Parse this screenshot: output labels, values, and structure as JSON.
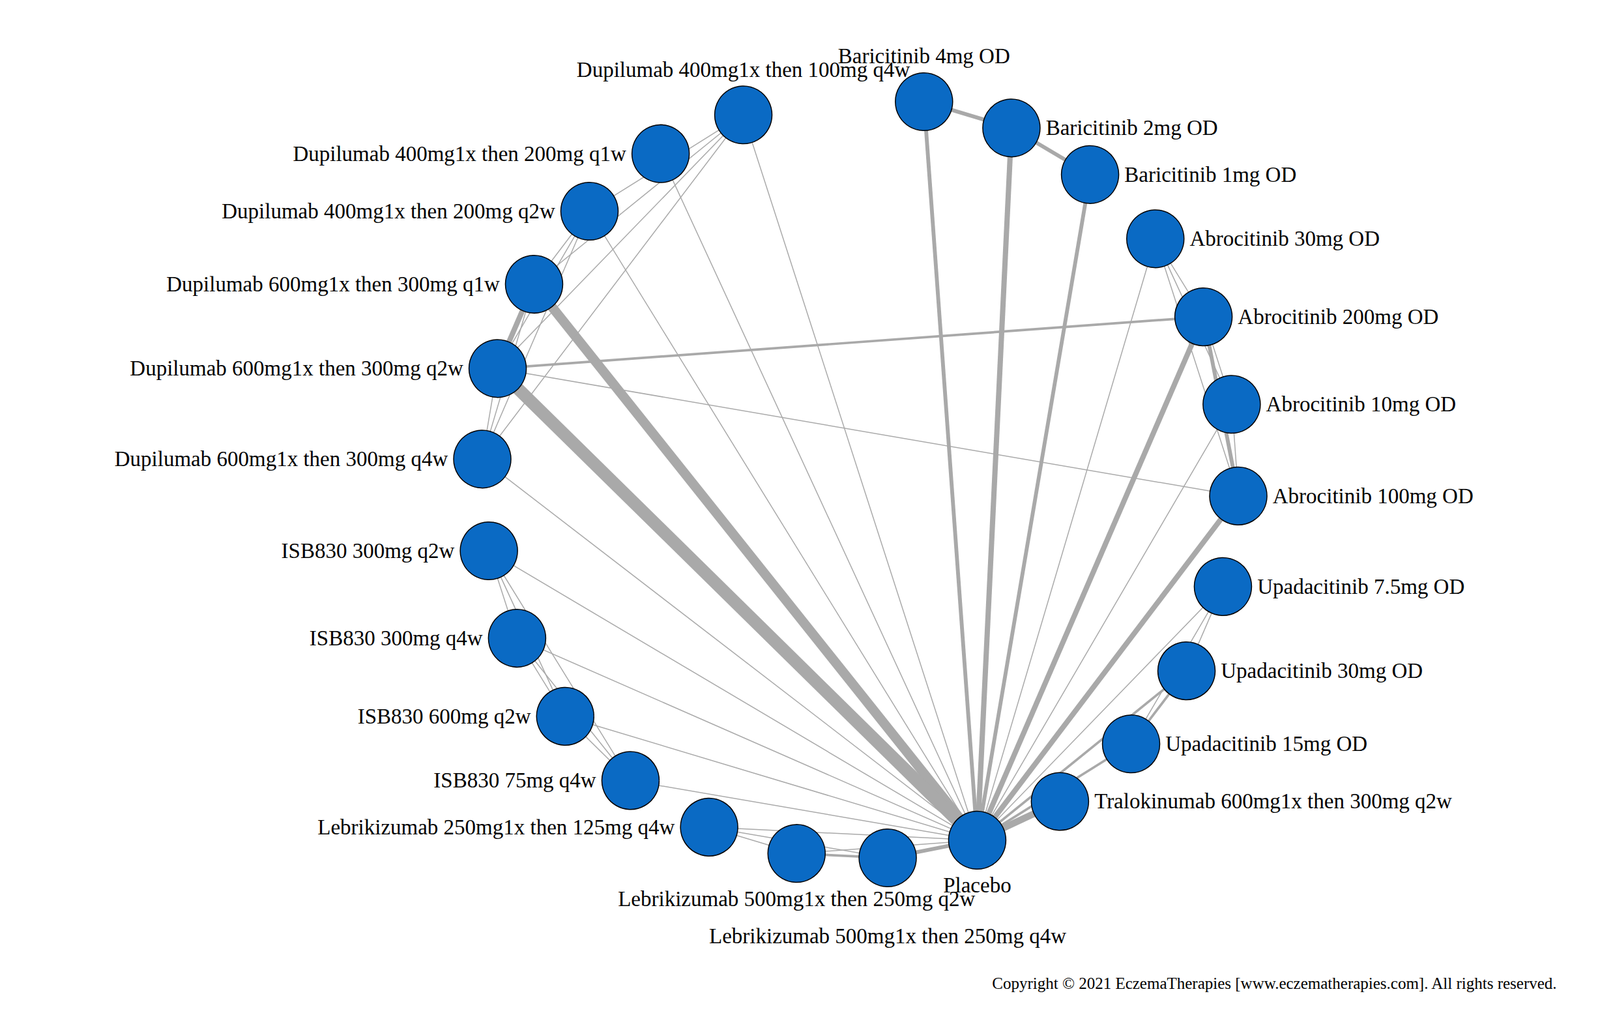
{
  "chart_data": {
    "type": "graph",
    "copyright": "Copyright © 2021 EczemaTherapies [www.eczematherapies.com]. All rights reserved.",
    "nodes": [
      "Placebo",
      "Tralokinumab 600mg1x then 300mg q2w",
      "Upadacitinib 15mg OD",
      "Upadacitinib 30mg OD",
      "Upadacitinib 7.5mg OD",
      "Abrocitinib 100mg OD",
      "Abrocitinib 10mg OD",
      "Abrocitinib 200mg OD",
      "Abrocitinib 30mg OD",
      "Baricitinib 1mg OD",
      "Baricitinib 2mg OD",
      "Baricitinib 4mg OD",
      null,
      "Dupilumab 400mg1x then 100mg q4w",
      "Dupilumab 400mg1x then 200mg q1w",
      "Dupilumab 400mg1x then 200mg q2w",
      "Dupilumab 600mg1x then 300mg q1w",
      "Dupilumab 600mg1x then 300mg q2w",
      "Dupilumab 600mg1x then 300mg q4w",
      "ISB830 300mg q2w",
      "ISB830 300mg q4w",
      "ISB830 600mg q2w",
      "ISB830 75mg q4w",
      "Lebrikizumab 250mg1x then 125mg q4w",
      "Lebrikizumab 500mg1x then 250mg q2w",
      "Lebrikizumab 500mg1x then 250mg q4w"
    ],
    "edges": [
      {
        "source": "Placebo",
        "target": "Tralokinumab 600mg1x then 300mg q2w",
        "trials": 5
      },
      {
        "source": "Placebo",
        "target": "Upadacitinib 15mg OD",
        "trials": 2
      },
      {
        "source": "Placebo",
        "target": "Upadacitinib 30mg OD",
        "trials": 2
      },
      {
        "source": "Placebo",
        "target": "Upadacitinib 7.5mg OD",
        "trials": 1
      },
      {
        "source": "Placebo",
        "target": "Abrocitinib 100mg OD",
        "trials": 4
      },
      {
        "source": "Placebo",
        "target": "Abrocitinib 10mg OD",
        "trials": 1
      },
      {
        "source": "Placebo",
        "target": "Abrocitinib 200mg OD",
        "trials": 4
      },
      {
        "source": "Placebo",
        "target": "Abrocitinib 30mg OD",
        "trials": 1
      },
      {
        "source": "Placebo",
        "target": "Baricitinib 1mg OD",
        "trials": 3
      },
      {
        "source": "Placebo",
        "target": "Baricitinib 2mg OD",
        "trials": 4
      },
      {
        "source": "Placebo",
        "target": "Baricitinib 4mg OD",
        "trials": 3
      },
      {
        "source": "Baricitinib 4mg OD",
        "target": "Baricitinib 2mg OD",
        "trials": 3
      },
      {
        "source": "Baricitinib 2mg OD",
        "target": "Baricitinib 1mg OD",
        "trials": 3
      },
      {
        "source": "Placebo",
        "target": "Dupilumab 400mg1x then 100mg q4w",
        "trials": 1
      },
      {
        "source": "Placebo",
        "target": "Dupilumab 400mg1x then 200mg q1w",
        "trials": 1
      },
      {
        "source": "Placebo",
        "target": "Dupilumab 400mg1x then 200mg q2w",
        "trials": 1
      },
      {
        "source": "Placebo",
        "target": "Dupilumab 600mg1x then 300mg q1w",
        "trials": 7
      },
      {
        "source": "Placebo",
        "target": "Dupilumab 600mg1x then 300mg q2w",
        "trials": 9
      },
      {
        "source": "Placebo",
        "target": "Dupilumab 600mg1x then 300mg q4w",
        "trials": 1
      },
      {
        "source": "Dupilumab 400mg1x then 100mg q4w",
        "target": "Dupilumab 400mg1x then 200mg q2w",
        "trials": 1
      },
      {
        "source": "Dupilumab 400mg1x then 100mg q4w",
        "target": "Dupilumab 600mg1x then 300mg q1w",
        "trials": 1
      },
      {
        "source": "Dupilumab 400mg1x then 100mg q4w",
        "target": "Dupilumab 600mg1x then 300mg q2w",
        "trials": 1
      },
      {
        "source": "Dupilumab 400mg1x then 100mg q4w",
        "target": "Dupilumab 600mg1x then 300mg q4w",
        "trials": 1
      },
      {
        "source": "Dupilumab 400mg1x then 200mg q2w",
        "target": "Dupilumab 600mg1x then 300mg q1w",
        "trials": 1
      },
      {
        "source": "Dupilumab 400mg1x then 200mg q2w",
        "target": "Dupilumab 600mg1x then 300mg q2w",
        "trials": 1
      },
      {
        "source": "Dupilumab 400mg1x then 200mg q2w",
        "target": "Dupilumab 600mg1x then 300mg q4w",
        "trials": 1
      },
      {
        "source": "Dupilumab 600mg1x then 300mg q1w",
        "target": "Dupilumab 600mg1x then 300mg q2w",
        "trials": 4
      },
      {
        "source": "Dupilumab 600mg1x then 300mg q1w",
        "target": "Dupilumab 600mg1x then 300mg q4w",
        "trials": 1
      },
      {
        "source": "Dupilumab 600mg1x then 300mg q2w",
        "target": "Dupilumab 600mg1x then 300mg q4w",
        "trials": 1
      },
      {
        "source": "Dupilumab 600mg1x then 300mg q2w",
        "target": "Abrocitinib 200mg OD",
        "trials": 2
      },
      {
        "source": "Dupilumab 600mg1x then 300mg q2w",
        "target": "Abrocitinib 100mg OD",
        "trials": 1
      },
      {
        "source": "Abrocitinib 30mg OD",
        "target": "Abrocitinib 200mg OD",
        "trials": 1
      },
      {
        "source": "Abrocitinib 30mg OD",
        "target": "Abrocitinib 10mg OD",
        "trials": 1
      },
      {
        "source": "Abrocitinib 30mg OD",
        "target": "Abrocitinib 100mg OD",
        "trials": 1
      },
      {
        "source": "Abrocitinib 200mg OD",
        "target": "Abrocitinib 10mg OD",
        "trials": 1
      },
      {
        "source": "Abrocitinib 200mg OD",
        "target": "Abrocitinib 100mg OD",
        "trials": 3
      },
      {
        "source": "Abrocitinib 10mg OD",
        "target": "Abrocitinib 100mg OD",
        "trials": 1
      },
      {
        "source": "Upadacitinib 7.5mg OD",
        "target": "Upadacitinib 30mg OD",
        "trials": 1
      },
      {
        "source": "Upadacitinib 7.5mg OD",
        "target": "Upadacitinib 15mg OD",
        "trials": 1
      },
      {
        "source": "Upadacitinib 30mg OD",
        "target": "Upadacitinib 15mg OD",
        "trials": 2
      },
      {
        "source": "Placebo",
        "target": "ISB830 300mg q2w",
        "trials": 1
      },
      {
        "source": "Placebo",
        "target": "ISB830 300mg q4w",
        "trials": 1
      },
      {
        "source": "Placebo",
        "target": "ISB830 600mg q2w",
        "trials": 1
      },
      {
        "source": "Placebo",
        "target": "ISB830 75mg q4w",
        "trials": 1
      },
      {
        "source": "ISB830 300mg q2w",
        "target": "ISB830 300mg q4w",
        "trials": 1
      },
      {
        "source": "ISB830 300mg q2w",
        "target": "ISB830 600mg q2w",
        "trials": 1
      },
      {
        "source": "ISB830 300mg q2w",
        "target": "ISB830 75mg q4w",
        "trials": 1
      },
      {
        "source": "ISB830 300mg q4w",
        "target": "ISB830 600mg q2w",
        "trials": 1
      },
      {
        "source": "ISB830 300mg q4w",
        "target": "ISB830 75mg q4w",
        "trials": 1
      },
      {
        "source": "ISB830 600mg q2w",
        "target": "ISB830 75mg q4w",
        "trials": 1
      },
      {
        "source": "Placebo",
        "target": "Lebrikizumab 250mg1x then 125mg q4w",
        "trials": 1
      },
      {
        "source": "Placebo",
        "target": "Lebrikizumab 500mg1x then 250mg q2w",
        "trials": 1
      },
      {
        "source": "Placebo",
        "target": "Lebrikizumab 500mg1x then 250mg q4w",
        "trials": 3
      },
      {
        "source": "Lebrikizumab 250mg1x then 125mg q4w",
        "target": "Lebrikizumab 500mg1x then 250mg q2w",
        "trials": 1
      },
      {
        "source": "Lebrikizumab 250mg1x then 125mg q4w",
        "target": "Lebrikizumab 500mg1x then 250mg q4w",
        "trials": 1
      },
      {
        "source": "Lebrikizumab 500mg1x then 250mg q2w",
        "target": "Lebrikizumab 500mg1x then 250mg q4w",
        "trials": 2
      }
    ]
  }
}
